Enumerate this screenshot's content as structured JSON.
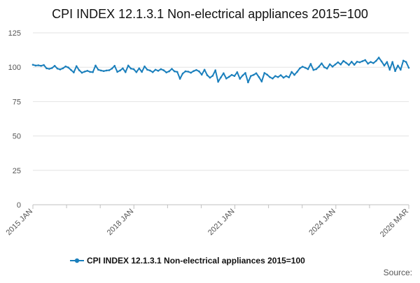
{
  "chart_data": {
    "type": "line",
    "title": "CPI INDEX 12.1.3.1 Non-electrical appliances 2015=100",
    "xlabel": "",
    "ylabel": "",
    "ylim": [
      0,
      125
    ],
    "yticks": [
      0,
      25,
      50,
      75,
      100,
      125
    ],
    "xlim": [
      2015.0,
      2026.1667
    ],
    "xtick_labels": [
      {
        "label": "2015 JAN",
        "x": 2015.0
      },
      {
        "label": "2018 JAN",
        "x": 2018.0
      },
      {
        "label": "2021 JAN",
        "x": 2021.0
      },
      {
        "label": "2024 JAN",
        "x": 2024.0
      },
      {
        "label": "2026 MAR",
        "x": 2026.1667
      }
    ],
    "minor_tick_years": [
      2016,
      2017,
      2019,
      2020,
      2022,
      2023,
      2025
    ],
    "grid": true,
    "legend_position": "bottom-center",
    "series": [
      {
        "name": "CPI INDEX 12.1.3.1 Non-electrical appliances 2015=100",
        "color": "#1a7fbc",
        "start": "2015 JAN",
        "frequency": "monthly",
        "values": [
          101.8,
          101.2,
          101.4,
          101.0,
          101.6,
          99.2,
          98.8,
          99.4,
          101.0,
          99.0,
          98.4,
          99.2,
          100.6,
          99.8,
          98.0,
          96.2,
          100.8,
          97.8,
          96.0,
          96.8,
          97.4,
          96.6,
          96.4,
          101.2,
          98.2,
          97.6,
          97.2,
          97.6,
          97.8,
          99.0,
          101.0,
          96.6,
          97.6,
          99.2,
          96.4,
          101.2,
          99.0,
          98.6,
          96.4,
          99.2,
          96.6,
          100.6,
          98.2,
          97.6,
          96.4,
          98.2,
          97.4,
          98.6,
          97.8,
          96.2,
          97.0,
          98.8,
          97.0,
          96.6,
          91.6,
          95.4,
          97.0,
          96.8,
          96.0,
          97.2,
          98.0,
          97.0,
          94.6,
          98.2,
          94.2,
          92.4,
          93.8,
          97.8,
          89.4,
          92.6,
          95.6,
          91.8,
          93.0,
          94.4,
          93.6,
          96.4,
          91.6,
          94.0,
          95.8,
          89.0,
          93.6,
          94.4,
          95.6,
          92.8,
          89.6,
          95.8,
          94.6,
          92.8,
          91.8,
          93.6,
          92.8,
          94.2,
          92.4,
          93.6,
          92.6,
          96.6,
          94.4,
          96.6,
          99.2,
          100.4,
          99.6,
          98.6,
          102.4,
          98.0,
          98.6,
          100.4,
          102.8,
          100.0,
          99.0,
          102.2,
          100.4,
          102.0,
          103.6,
          102.0,
          104.6,
          103.2,
          101.6,
          104.0,
          101.8,
          104.0,
          103.6,
          104.4,
          105.2,
          102.6,
          103.8,
          103.0,
          104.6,
          107.0,
          104.2,
          101.2,
          103.8,
          98.2,
          103.8,
          97.2,
          101.2,
          98.2,
          104.8,
          103.8,
          99.6
        ]
      }
    ]
  },
  "footer": {
    "source_label": "Source:"
  }
}
